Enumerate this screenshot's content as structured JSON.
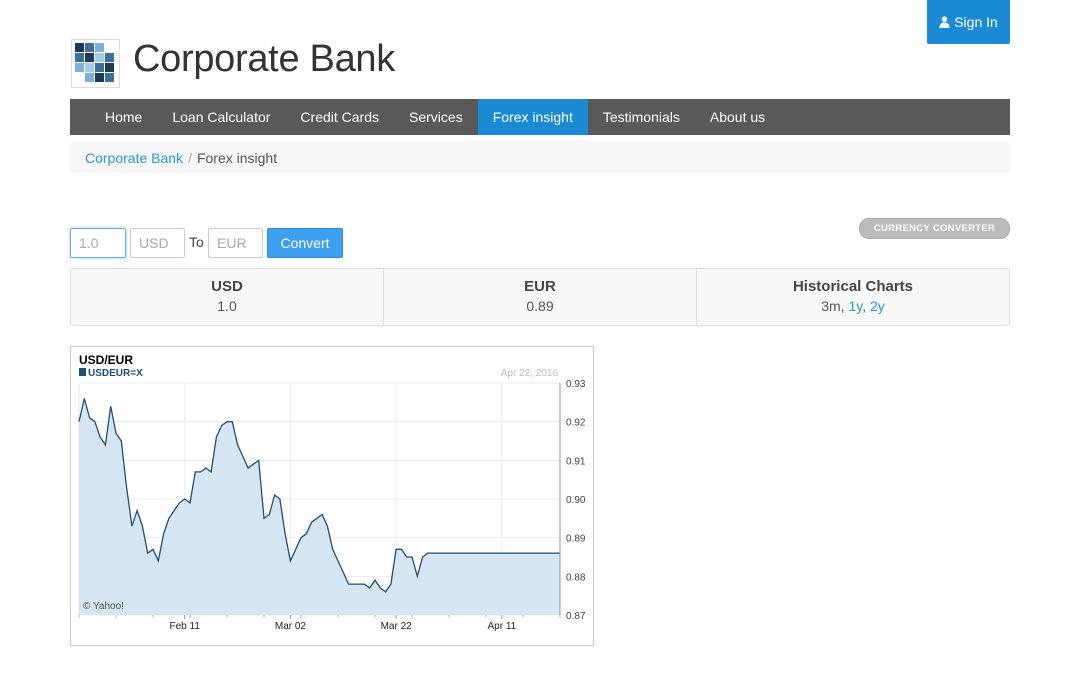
{
  "header": {
    "brand": "Corporate Bank",
    "sign_in_label": "Sign In",
    "sign_in_icon": "user-icon",
    "logo_icon": "bank-logo-icon"
  },
  "nav": {
    "items": [
      {
        "label": "Home"
      },
      {
        "label": "Loan Calculator"
      },
      {
        "label": "Credit Cards"
      },
      {
        "label": "Services"
      },
      {
        "label": "Forex insight",
        "active": true
      },
      {
        "label": "Testimonials"
      },
      {
        "label": "About us"
      }
    ]
  },
  "breadcrumb": {
    "home": "Corporate Bank",
    "separator": "/",
    "current": "Forex insight"
  },
  "converter": {
    "badge": "CURRENCY CONVERTER",
    "amount_placeholder": "1.0",
    "from_placeholder": "USD",
    "to_label": "To",
    "to_placeholder": "EUR",
    "convert_label": "Convert"
  },
  "results": {
    "from_currency": "USD",
    "from_value": "1.0",
    "to_currency": "EUR",
    "to_value": "0.89",
    "historical_label": "Historical Charts",
    "range_current": "3m,",
    "range_1y": "1y",
    "range_sep": ",",
    "range_2y": "2y"
  },
  "colors": {
    "accent": "#1a8ad4",
    "navbar": "#595959",
    "link": "#2b9ad0",
    "chart_line": "#1f4e79",
    "chart_fill": "#d5e5f1"
  },
  "chart_data": {
    "type": "area",
    "title": "USD/EUR",
    "series": [
      {
        "name": "USDEUR=X",
        "x": [
          "Jan 22",
          "Jan 23",
          "Jan 24",
          "Jan 25",
          "Jan 26",
          "Jan 27",
          "Jan 28",
          "Jan 29",
          "Jan 30",
          "Jan 31",
          "Feb 01",
          "Feb 02",
          "Feb 03",
          "Feb 04",
          "Feb 05",
          "Feb 06",
          "Feb 07",
          "Feb 08",
          "Feb 09",
          "Feb 10",
          "Feb 11",
          "Feb 12",
          "Feb 13",
          "Feb 14",
          "Feb 15",
          "Feb 16",
          "Feb 17",
          "Feb 18",
          "Feb 19",
          "Feb 20",
          "Feb 21",
          "Feb 22",
          "Feb 23",
          "Feb 24",
          "Feb 25",
          "Feb 26",
          "Feb 27",
          "Feb 28",
          "Feb 29",
          "Mar 01",
          "Mar 02",
          "Mar 03",
          "Mar 04",
          "Mar 05",
          "Mar 06",
          "Mar 07",
          "Mar 08",
          "Mar 09",
          "Mar 10",
          "Mar 11",
          "Mar 12",
          "Mar 13",
          "Mar 14",
          "Mar 15",
          "Mar 16",
          "Mar 17",
          "Mar 18",
          "Mar 19",
          "Mar 20",
          "Mar 21",
          "Mar 22",
          "Mar 23",
          "Mar 24",
          "Mar 25",
          "Mar 26",
          "Mar 27",
          "Mar 28",
          "Mar 29",
          "Mar 30",
          "Mar 31",
          "Apr 01",
          "Apr 02",
          "Apr 03",
          "Apr 04",
          "Apr 05",
          "Apr 06",
          "Apr 07",
          "Apr 08",
          "Apr 09",
          "Apr 10",
          "Apr 11",
          "Apr 12",
          "Apr 13",
          "Apr 14",
          "Apr 15",
          "Apr 16",
          "Apr 17",
          "Apr 18",
          "Apr 19",
          "Apr 20",
          "Apr 21",
          "Apr 22"
        ],
        "values": [
          0.92,
          0.926,
          0.921,
          0.92,
          0.916,
          0.914,
          0.924,
          0.917,
          0.915,
          0.903,
          0.893,
          0.897,
          0.893,
          0.886,
          0.887,
          0.884,
          0.891,
          0.895,
          0.897,
          0.899,
          0.9,
          0.899,
          0.907,
          0.907,
          0.908,
          0.907,
          0.916,
          0.919,
          0.92,
          0.92,
          0.914,
          0.911,
          0.908,
          0.909,
          0.91,
          0.895,
          0.896,
          0.901,
          0.9,
          0.891,
          0.884,
          0.887,
          0.89,
          0.891,
          0.894,
          0.895,
          0.896,
          0.893,
          0.887,
          0.884,
          0.881,
          0.878,
          0.878,
          0.878,
          0.878,
          0.877,
          0.879,
          0.877,
          0.876,
          0.878,
          0.887,
          0.887,
          0.885,
          0.885,
          0.88,
          0.885,
          0.886,
          0.886,
          0.886,
          0.886,
          0.886,
          0.886,
          0.886,
          0.886,
          0.886,
          0.886,
          0.886,
          0.886,
          0.886,
          0.886,
          0.886,
          0.886,
          0.886,
          0.886,
          0.886,
          0.886,
          0.886,
          0.886,
          0.886,
          0.886,
          0.886,
          0.886
        ]
      }
    ],
    "x_ticks": [
      "Feb 11",
      "Mar 02",
      "Mar 22",
      "Apr 11"
    ],
    "y_ticks": [
      "0.93",
      "0.92",
      "0.91",
      "0.90",
      "0.89",
      "0.88",
      "0.87"
    ],
    "ylim": [
      0.87,
      0.93
    ],
    "date_label": "Apr 22, 2016",
    "credit": "© Yahoo!",
    "grid": true
  }
}
